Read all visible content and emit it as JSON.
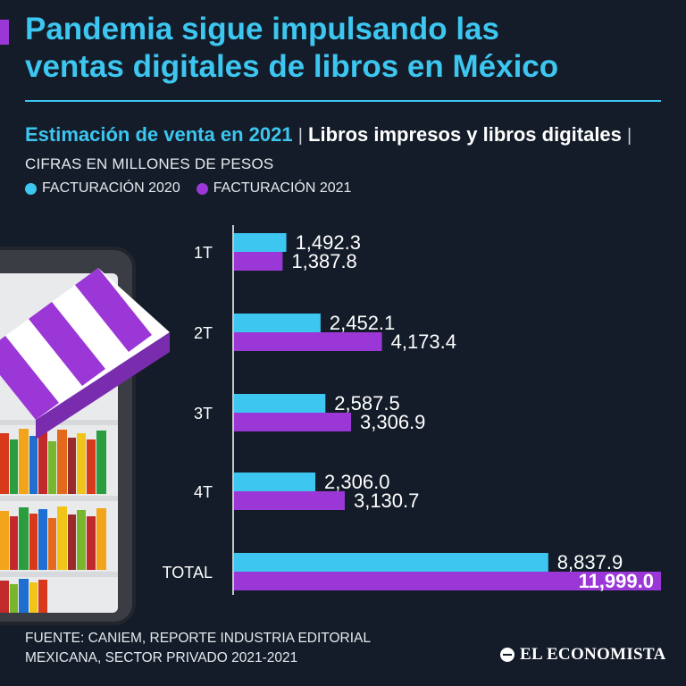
{
  "header": {
    "title_line1": "Pandemia sigue impulsando las",
    "title_line2": "ventas digitales de libros en México",
    "subtitle_a": "Estimación de venta en 2021",
    "subtitle_sep1": "|",
    "subtitle_b": "Libros impresos y libros digitales",
    "subtitle_sep2": "|",
    "subtitle_c": "CIFRAS EN MILLONES DE PESOS"
  },
  "colors": {
    "series_2020": "#3cc6f0",
    "series_2021": "#9b37d6",
    "background": "#141c29"
  },
  "chart_data": {
    "type": "bar",
    "orientation": "horizontal",
    "title": "Estimación de venta en 2021",
    "xlabel": "",
    "ylabel": "",
    "xlim": [
      0,
      11999
    ],
    "categories": [
      "1T",
      "2T",
      "3T",
      "4T",
      "TOTAL"
    ],
    "series": [
      {
        "name": "FACTURACIÓN 2020",
        "values": [
          1492.3,
          2452.1,
          2587.5,
          2306.0,
          8837.9
        ],
        "labels": [
          "1,492.3",
          "2,452.1",
          "2,587.5",
          "2,306.0",
          "8,837.9"
        ]
      },
      {
        "name": "FACTURACIÓN 2021",
        "values": [
          1387.8,
          4173.4,
          3306.9,
          3130.7,
          11999.0
        ],
        "labels": [
          "1,387.8",
          "4,173.4",
          "3,306.9",
          "3,130.7",
          "11,999.0"
        ]
      }
    ]
  },
  "footer": {
    "source_line1": "FUENTE: CANIEM, REPORTE INDUSTRIA EDITORIAL",
    "source_line2": "MEXICANA, SECTOR PRIVADO 2021-2021",
    "brand": "EL ECONOMISTA"
  }
}
